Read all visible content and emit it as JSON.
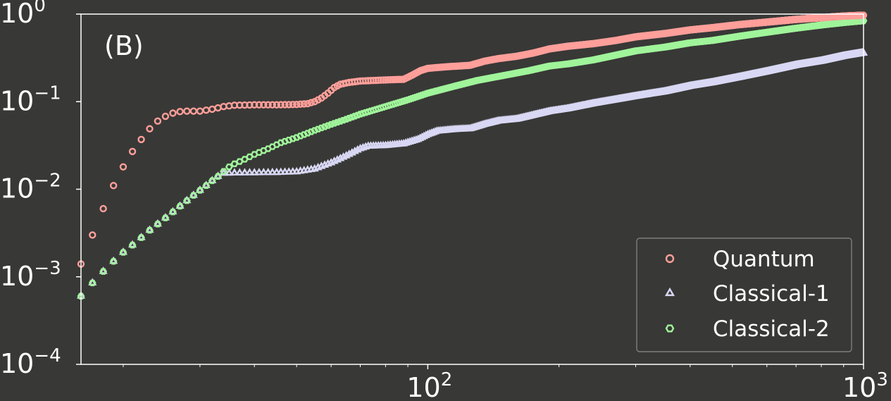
{
  "chart_data": {
    "type": "scatter",
    "panel_label": "(B)",
    "x_scale": "log",
    "y_scale": "log",
    "xlim": [
      16,
      1000
    ],
    "ylim": [
      0.0001,
      1
    ],
    "x_ticks": [
      {
        "value": 100,
        "base": "10",
        "exp": "2"
      },
      {
        "value": 1000,
        "base": "10",
        "exp": "3"
      }
    ],
    "y_ticks": [
      {
        "value": 1,
        "base": "10",
        "exp": "0"
      },
      {
        "value": 0.1,
        "base": "10",
        "exp": "−1"
      },
      {
        "value": 0.01,
        "base": "10",
        "exp": "−2"
      },
      {
        "value": 0.001,
        "base": "10",
        "exp": "−3"
      },
      {
        "value": 0.0001,
        "base": "10",
        "exp": "−4"
      }
    ],
    "legend_position": "lower-right",
    "colors": {
      "background": "#383836",
      "axes": "#ffffff",
      "legend_frame": "#8a8a8a"
    },
    "series": [
      {
        "name": "Quantum",
        "marker": "circle",
        "color": "#ff9f9a",
        "points": [
          [
            16,
            0.0014
          ],
          [
            17,
            0.003
          ],
          [
            18,
            0.006
          ],
          [
            19,
            0.011
          ],
          [
            20,
            0.018
          ],
          [
            21,
            0.027
          ],
          [
            22,
            0.037
          ],
          [
            23,
            0.049
          ],
          [
            24,
            0.06
          ],
          [
            25,
            0.068
          ],
          [
            26,
            0.074
          ],
          [
            27,
            0.077
          ],
          [
            28,
            0.078
          ],
          [
            30,
            0.078
          ],
          [
            32,
            0.082
          ],
          [
            34,
            0.088
          ],
          [
            36,
            0.091
          ],
          [
            40,
            0.092
          ],
          [
            45,
            0.092
          ],
          [
            50,
            0.093
          ],
          [
            53,
            0.095
          ],
          [
            55,
            0.1
          ],
          [
            57,
            0.11
          ],
          [
            59,
            0.125
          ],
          [
            61,
            0.145
          ],
          [
            63,
            0.158
          ],
          [
            66,
            0.166
          ],
          [
            70,
            0.172
          ],
          [
            80,
            0.177
          ],
          [
            88,
            0.18
          ],
          [
            92,
            0.2
          ],
          [
            96,
            0.225
          ],
          [
            100,
            0.24
          ],
          [
            110,
            0.25
          ],
          [
            125,
            0.26
          ],
          [
            135,
            0.29
          ],
          [
            145,
            0.31
          ],
          [
            160,
            0.33
          ],
          [
            175,
            0.36
          ],
          [
            190,
            0.4
          ],
          [
            210,
            0.43
          ],
          [
            240,
            0.46
          ],
          [
            270,
            0.5
          ],
          [
            300,
            0.55
          ],
          [
            350,
            0.6
          ],
          [
            400,
            0.66
          ],
          [
            450,
            0.7
          ],
          [
            520,
            0.76
          ],
          [
            600,
            0.81
          ],
          [
            700,
            0.87
          ],
          [
            800,
            0.91
          ],
          [
            900,
            0.95
          ],
          [
            1000,
            0.97
          ]
        ]
      },
      {
        "name": "Classical-1",
        "marker": "triangle",
        "color": "#d8d8f4",
        "points": [
          [
            16,
            0.0006
          ],
          [
            17,
            0.00085
          ],
          [
            18,
            0.00115
          ],
          [
            19,
            0.0015
          ],
          [
            20,
            0.0019
          ],
          [
            21,
            0.0023
          ],
          [
            22,
            0.0028
          ],
          [
            23,
            0.0034
          ],
          [
            24,
            0.004
          ],
          [
            25,
            0.0047
          ],
          [
            26,
            0.0055
          ],
          [
            27,
            0.0064
          ],
          [
            28,
            0.0074
          ],
          [
            29,
            0.0085
          ],
          [
            30,
            0.0097
          ],
          [
            31,
            0.011
          ],
          [
            32,
            0.0125
          ],
          [
            33,
            0.014
          ],
          [
            34,
            0.0152
          ],
          [
            36,
            0.0153
          ],
          [
            40,
            0.0154
          ],
          [
            45,
            0.0155
          ],
          [
            50,
            0.0158
          ],
          [
            55,
            0.017
          ],
          [
            60,
            0.02
          ],
          [
            65,
            0.024
          ],
          [
            70,
            0.029
          ],
          [
            73,
            0.031
          ],
          [
            80,
            0.0315
          ],
          [
            88,
            0.033
          ],
          [
            95,
            0.037
          ],
          [
            100,
            0.042
          ],
          [
            105,
            0.046
          ],
          [
            115,
            0.048
          ],
          [
            125,
            0.049
          ],
          [
            135,
            0.055
          ],
          [
            145,
            0.06
          ],
          [
            160,
            0.063
          ],
          [
            175,
            0.07
          ],
          [
            190,
            0.077
          ],
          [
            210,
            0.083
          ],
          [
            240,
            0.095
          ],
          [
            270,
            0.105
          ],
          [
            300,
            0.115
          ],
          [
            350,
            0.13
          ],
          [
            400,
            0.15
          ],
          [
            450,
            0.165
          ],
          [
            520,
            0.19
          ],
          [
            600,
            0.22
          ],
          [
            700,
            0.26
          ],
          [
            800,
            0.29
          ],
          [
            900,
            0.33
          ],
          [
            1000,
            0.36
          ]
        ]
      },
      {
        "name": "Classical-2",
        "marker": "hexagon",
        "color": "#a0f49a",
        "points": [
          [
            16,
            0.0006
          ],
          [
            17,
            0.00085
          ],
          [
            18,
            0.00115
          ],
          [
            19,
            0.0015
          ],
          [
            20,
            0.0019
          ],
          [
            21,
            0.0023
          ],
          [
            22,
            0.0028
          ],
          [
            23,
            0.0034
          ],
          [
            24,
            0.004
          ],
          [
            25,
            0.0047
          ],
          [
            26,
            0.0055
          ],
          [
            27,
            0.0064
          ],
          [
            28,
            0.0074
          ],
          [
            29,
            0.0085
          ],
          [
            30,
            0.0097
          ],
          [
            31,
            0.011
          ],
          [
            32,
            0.0125
          ],
          [
            33,
            0.014
          ],
          [
            34,
            0.016
          ],
          [
            35,
            0.018
          ],
          [
            36,
            0.0195
          ],
          [
            38,
            0.022
          ],
          [
            40,
            0.025
          ],
          [
            43,
            0.029
          ],
          [
            46,
            0.034
          ],
          [
            50,
            0.039
          ],
          [
            55,
            0.047
          ],
          [
            60,
            0.055
          ],
          [
            65,
            0.063
          ],
          [
            70,
            0.072
          ],
          [
            80,
            0.088
          ],
          [
            90,
            0.105
          ],
          [
            100,
            0.125
          ],
          [
            115,
            0.15
          ],
          [
            130,
            0.175
          ],
          [
            150,
            0.2
          ],
          [
            170,
            0.225
          ],
          [
            190,
            0.255
          ],
          [
            210,
            0.27
          ],
          [
            240,
            0.3
          ],
          [
            270,
            0.34
          ],
          [
            300,
            0.38
          ],
          [
            350,
            0.42
          ],
          [
            400,
            0.47
          ],
          [
            450,
            0.5
          ],
          [
            520,
            0.56
          ],
          [
            600,
            0.62
          ],
          [
            700,
            0.69
          ],
          [
            800,
            0.75
          ],
          [
            900,
            0.8
          ],
          [
            1000,
            0.84
          ]
        ]
      }
    ]
  }
}
